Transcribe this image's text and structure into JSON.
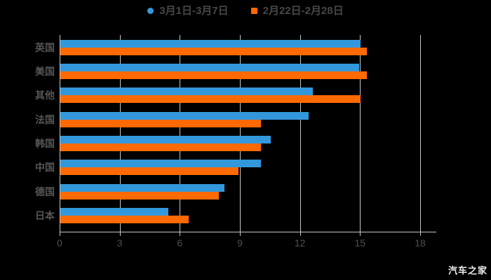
{
  "legend": {
    "items": [
      {
        "label": "3月1日-3月7日",
        "marker": "circle",
        "color": "#3398db"
      },
      {
        "label": "2月22日-2月28日",
        "marker": "square",
        "color": "#ff6a00"
      }
    ]
  },
  "watermark": "汽车之家",
  "colors": {
    "background": "#000000",
    "grid": "#c6c6c6",
    "axis_text": "#4f4f4f",
    "category_text": "#565656",
    "legend_text": "#474747",
    "watermark_text": "#ebebeb"
  },
  "chart_data": {
    "type": "bar",
    "orientation": "horizontal",
    "title": "",
    "xlabel": "",
    "ylabel": "",
    "categories": [
      "英国",
      "美国",
      "其他",
      "法国",
      "韩国",
      "中国",
      "德国",
      "日本"
    ],
    "series": [
      {
        "name": "3月1日-3月7日",
        "color": "#3398db",
        "values": [
          15.0,
          14.9,
          12.6,
          12.4,
          10.5,
          10.0,
          8.2,
          5.4
        ]
      },
      {
        "name": "2月22日-2月28日",
        "color": "#ff6a00",
        "values": [
          15.3,
          15.3,
          15.0,
          10.0,
          10.0,
          8.9,
          7.9,
          6.4
        ]
      }
    ],
    "xlim": [
      0,
      18
    ],
    "xticks": [
      0,
      3,
      6,
      9,
      12,
      15,
      18
    ],
    "grid": true,
    "legend_position": "top",
    "background": "#000000"
  }
}
